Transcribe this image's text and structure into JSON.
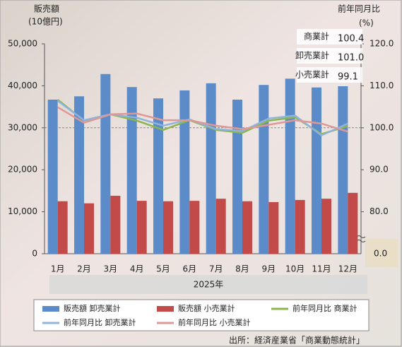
{
  "chart_data": {
    "type": "bar_line",
    "y_title": "販売額",
    "y_unit": "(10億円)",
    "y2_title": "前年同月比",
    "y2_unit": "(%)",
    "x_title": "2025年",
    "source": "出所：経済産業省「商業動態統計」",
    "categories": [
      "1月",
      "2月",
      "3月",
      "4月",
      "5月",
      "6月",
      "7月",
      "8月",
      "9月",
      "10月",
      "11月",
      "12月"
    ],
    "ylim": [
      0,
      50000
    ],
    "yticks": [
      0,
      {
        "value": 10000,
        "label": "10,000"
      },
      {
        "value": 20000,
        "label": "20,000"
      },
      {
        "value": 30000,
        "label": "30,000"
      },
      {
        "value": 40000,
        "label": "40,000"
      },
      {
        "value": 50000,
        "label": "50,000"
      }
    ],
    "y2lim": [
      70,
      120
    ],
    "y2ticks": [
      {
        "value": 80,
        "label": "80.0"
      },
      {
        "value": 90,
        "label": "90.0"
      },
      {
        "value": 100,
        "label": "100.0"
      },
      {
        "value": 110,
        "label": "110.0"
      },
      {
        "value": 120,
        "label": "120.0"
      }
    ],
    "y2_break_label": "0.0",
    "y2_reference": 100,
    "grid": false,
    "series": [
      {
        "name": "販売額 卸売業計",
        "kind": "bar",
        "color": "#5b8bc9",
        "values": [
          36700,
          37500,
          42800,
          39700,
          37000,
          38900,
          40600,
          36700,
          40200,
          41700,
          39600,
          39900
        ]
      },
      {
        "name": "販売額 小売業計",
        "kind": "bar",
        "color": "#c24a48",
        "values": [
          12500,
          12000,
          13800,
          12600,
          12500,
          12600,
          13100,
          12500,
          12300,
          12800,
          13100,
          14500
        ]
      },
      {
        "name": "前年同月比 商業計",
        "kind": "line",
        "axis": "y2",
        "color": "#8db54e",
        "short_name": "商業計",
        "end_label": "100.4",
        "values": [
          106.7,
          101.7,
          103.2,
          101.7,
          99.5,
          101.8,
          99.5,
          98.8,
          101.7,
          102.5,
          98.5,
          100.4
        ]
      },
      {
        "name": "前年同月比 卸売業計",
        "kind": "line",
        "axis": "y2",
        "color": "#8fb4dc",
        "short_name": "卸売業計",
        "end_label": "101.0",
        "values": [
          106.4,
          101.8,
          103.2,
          102.4,
          100.5,
          102.0,
          99.7,
          99.2,
          102.2,
          102.9,
          98.2,
          101.0
        ]
      },
      {
        "name": "前年同月比 小売業計",
        "kind": "line",
        "axis": "y2",
        "color": "#de9896",
        "short_name": "小売業計",
        "end_label": "99.1",
        "values": [
          104.9,
          101.2,
          103.2,
          103.4,
          101.8,
          101.8,
          100.5,
          99.7,
          100.7,
          101.8,
          101.0,
          99.1
        ]
      }
    ]
  }
}
